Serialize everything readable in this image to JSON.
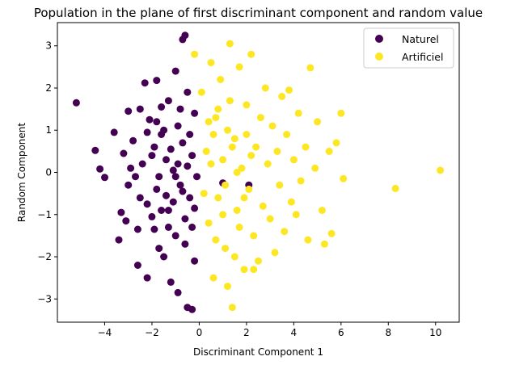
{
  "chart_data": {
    "type": "scatter",
    "title": "Population in the plane of first discriminant component and random value",
    "xlabel": "Discriminant Component 1",
    "ylabel": "Random Component",
    "xlim": [
      -6.0,
      11.0
    ],
    "ylim": [
      -3.55,
      3.55
    ],
    "xticks": [
      {
        "value": -4,
        "label": "−4"
      },
      {
        "value": -2,
        "label": "−2"
      },
      {
        "value": 0,
        "label": "0"
      },
      {
        "value": 2,
        "label": "2"
      },
      {
        "value": 4,
        "label": "4"
      },
      {
        "value": 6,
        "label": "6"
      },
      {
        "value": 8,
        "label": "8"
      },
      {
        "value": 10,
        "label": "10"
      }
    ],
    "yticks": [
      {
        "value": -3,
        "label": "−3"
      },
      {
        "value": -2,
        "label": "−2"
      },
      {
        "value": -1,
        "label": "−1"
      },
      {
        "value": 0,
        "label": "0"
      },
      {
        "value": 1,
        "label": "1"
      },
      {
        "value": 2,
        "label": "2"
      },
      {
        "value": 3,
        "label": "3"
      }
    ],
    "grid": false,
    "legend_position": "top-right",
    "series": [
      {
        "name": "Naturel",
        "color": "#440154",
        "points": [
          [
            -5.2,
            1.65
          ],
          [
            -4.4,
            0.52
          ],
          [
            -4.2,
            0.08
          ],
          [
            -4.0,
            -0.12
          ],
          [
            -3.6,
            0.95
          ],
          [
            -3.4,
            -1.6
          ],
          [
            -3.3,
            -0.95
          ],
          [
            -3.2,
            0.45
          ],
          [
            -3.1,
            -1.15
          ],
          [
            -3.0,
            1.45
          ],
          [
            -3.0,
            -0.3
          ],
          [
            -2.8,
            0.75
          ],
          [
            -2.7,
            -0.1
          ],
          [
            -2.6,
            -1.35
          ],
          [
            -2.6,
            -2.2
          ],
          [
            -2.5,
            1.5
          ],
          [
            -2.4,
            0.2
          ],
          [
            -2.3,
            2.12
          ],
          [
            -2.2,
            -2.5
          ],
          [
            -2.2,
            -0.75
          ],
          [
            -2.1,
            1.25
          ],
          [
            -2.0,
            -1.05
          ],
          [
            -1.9,
            0.6
          ],
          [
            -1.8,
            -0.4
          ],
          [
            -1.8,
            2.18
          ],
          [
            -1.7,
            -1.8
          ],
          [
            -1.6,
            0.9
          ],
          [
            -1.5,
            -2.0
          ],
          [
            -1.4,
            0.3
          ],
          [
            -1.3,
            1.7
          ],
          [
            -1.3,
            -0.9
          ],
          [
            -1.2,
            -2.6
          ],
          [
            -1.1,
            0.05
          ],
          [
            -1.0,
            2.4
          ],
          [
            -1.0,
            -1.5
          ],
          [
            -0.9,
            1.1
          ],
          [
            -0.9,
            -2.85
          ],
          [
            -0.8,
            -0.3
          ],
          [
            -0.7,
            0.7
          ],
          [
            -0.7,
            3.15
          ],
          [
            -0.6,
            3.25
          ],
          [
            -0.6,
            -1.1
          ],
          [
            -0.5,
            1.9
          ],
          [
            -0.5,
            -3.2
          ],
          [
            -0.4,
            -0.6
          ],
          [
            -0.3,
            0.4
          ],
          [
            -0.3,
            -3.25
          ],
          [
            -0.2,
            1.4
          ],
          [
            -0.2,
            -2.1
          ],
          [
            -0.1,
            -0.1
          ],
          [
            -2.9,
            0.1
          ],
          [
            -2.5,
            -0.6
          ],
          [
            -2.2,
            0.95
          ],
          [
            -1.9,
            -1.35
          ],
          [
            -1.6,
            1.55
          ],
          [
            -1.4,
            -0.55
          ],
          [
            -1.2,
            0.55
          ],
          [
            -1.0,
            -0.1
          ],
          [
            -0.8,
            1.5
          ],
          [
            -0.6,
            -1.7
          ],
          [
            -0.4,
            0.9
          ],
          [
            -0.2,
            -0.85
          ],
          [
            2.1,
            -0.3
          ],
          [
            1.0,
            -0.25
          ],
          [
            -1.7,
            -0.1
          ],
          [
            -1.5,
            1.0
          ],
          [
            -1.3,
            -1.3
          ],
          [
            -1.1,
            -0.7
          ],
          [
            -0.9,
            0.2
          ],
          [
            -0.7,
            -0.45
          ],
          [
            -0.5,
            0.15
          ],
          [
            -0.3,
            -1.3
          ],
          [
            -2.0,
            0.4
          ],
          [
            -1.8,
            1.2
          ],
          [
            -1.6,
            -0.9
          ]
        ]
      },
      {
        "name": "Artificiel",
        "color": "#fde725",
        "points": [
          [
            -0.2,
            2.8
          ],
          [
            0.1,
            1.9
          ],
          [
            0.3,
            0.5
          ],
          [
            0.4,
            -1.2
          ],
          [
            0.5,
            2.6
          ],
          [
            0.6,
            -2.5
          ],
          [
            0.7,
            1.3
          ],
          [
            0.8,
            -0.6
          ],
          [
            0.9,
            2.2
          ],
          [
            1.0,
            0.3
          ],
          [
            1.1,
            -1.8
          ],
          [
            1.2,
            1.0
          ],
          [
            1.3,
            3.05
          ],
          [
            1.4,
            -3.2
          ],
          [
            1.5,
            0.8
          ],
          [
            1.6,
            -0.9
          ],
          [
            1.7,
            2.5
          ],
          [
            1.8,
            0.1
          ],
          [
            1.9,
            -2.3
          ],
          [
            2.0,
            1.6
          ],
          [
            2.1,
            -0.4
          ],
          [
            2.2,
            2.8
          ],
          [
            2.3,
            -1.5
          ],
          [
            2.4,
            0.6
          ],
          [
            2.5,
            -2.1
          ],
          [
            2.6,
            1.3
          ],
          [
            2.7,
            -0.8
          ],
          [
            2.8,
            2.0
          ],
          [
            2.9,
            0.2
          ],
          [
            3.0,
            -1.1
          ],
          [
            3.1,
            1.1
          ],
          [
            3.2,
            -1.9
          ],
          [
            3.3,
            0.5
          ],
          [
            3.4,
            -0.3
          ],
          [
            3.5,
            1.8
          ],
          [
            3.6,
            -1.4
          ],
          [
            3.7,
            0.9
          ],
          [
            3.8,
            1.95
          ],
          [
            3.9,
            -0.7
          ],
          [
            4.0,
            0.3
          ],
          [
            4.1,
            -1.0
          ],
          [
            4.2,
            1.4
          ],
          [
            4.3,
            -0.2
          ],
          [
            4.5,
            0.6
          ],
          [
            4.6,
            -1.6
          ],
          [
            4.7,
            2.48
          ],
          [
            4.9,
            0.1
          ],
          [
            5.0,
            1.2
          ],
          [
            5.2,
            -0.9
          ],
          [
            5.3,
            -1.7
          ],
          [
            5.5,
            0.5
          ],
          [
            5.6,
            -1.45
          ],
          [
            5.8,
            0.7
          ],
          [
            6.0,
            1.4
          ],
          [
            6.1,
            -0.15
          ],
          [
            8.3,
            -0.38
          ],
          [
            10.2,
            0.05
          ],
          [
            2.3,
            -2.3
          ],
          [
            1.2,
            -2.7
          ],
          [
            0.5,
            0.2
          ],
          [
            0.8,
            1.5
          ],
          [
            1.1,
            -0.3
          ],
          [
            1.4,
            0.6
          ],
          [
            1.7,
            -1.3
          ],
          [
            2.0,
            0.9
          ],
          [
            0.2,
            -0.5
          ],
          [
            0.6,
            0.9
          ],
          [
            1.0,
            -1.0
          ],
          [
            1.3,
            1.7
          ],
          [
            1.6,
            0.0
          ],
          [
            1.9,
            -0.6
          ],
          [
            2.2,
            0.4
          ],
          [
            0.4,
            1.2
          ],
          [
            0.7,
            -1.6
          ],
          [
            1.5,
            -2.0
          ]
        ]
      }
    ]
  }
}
